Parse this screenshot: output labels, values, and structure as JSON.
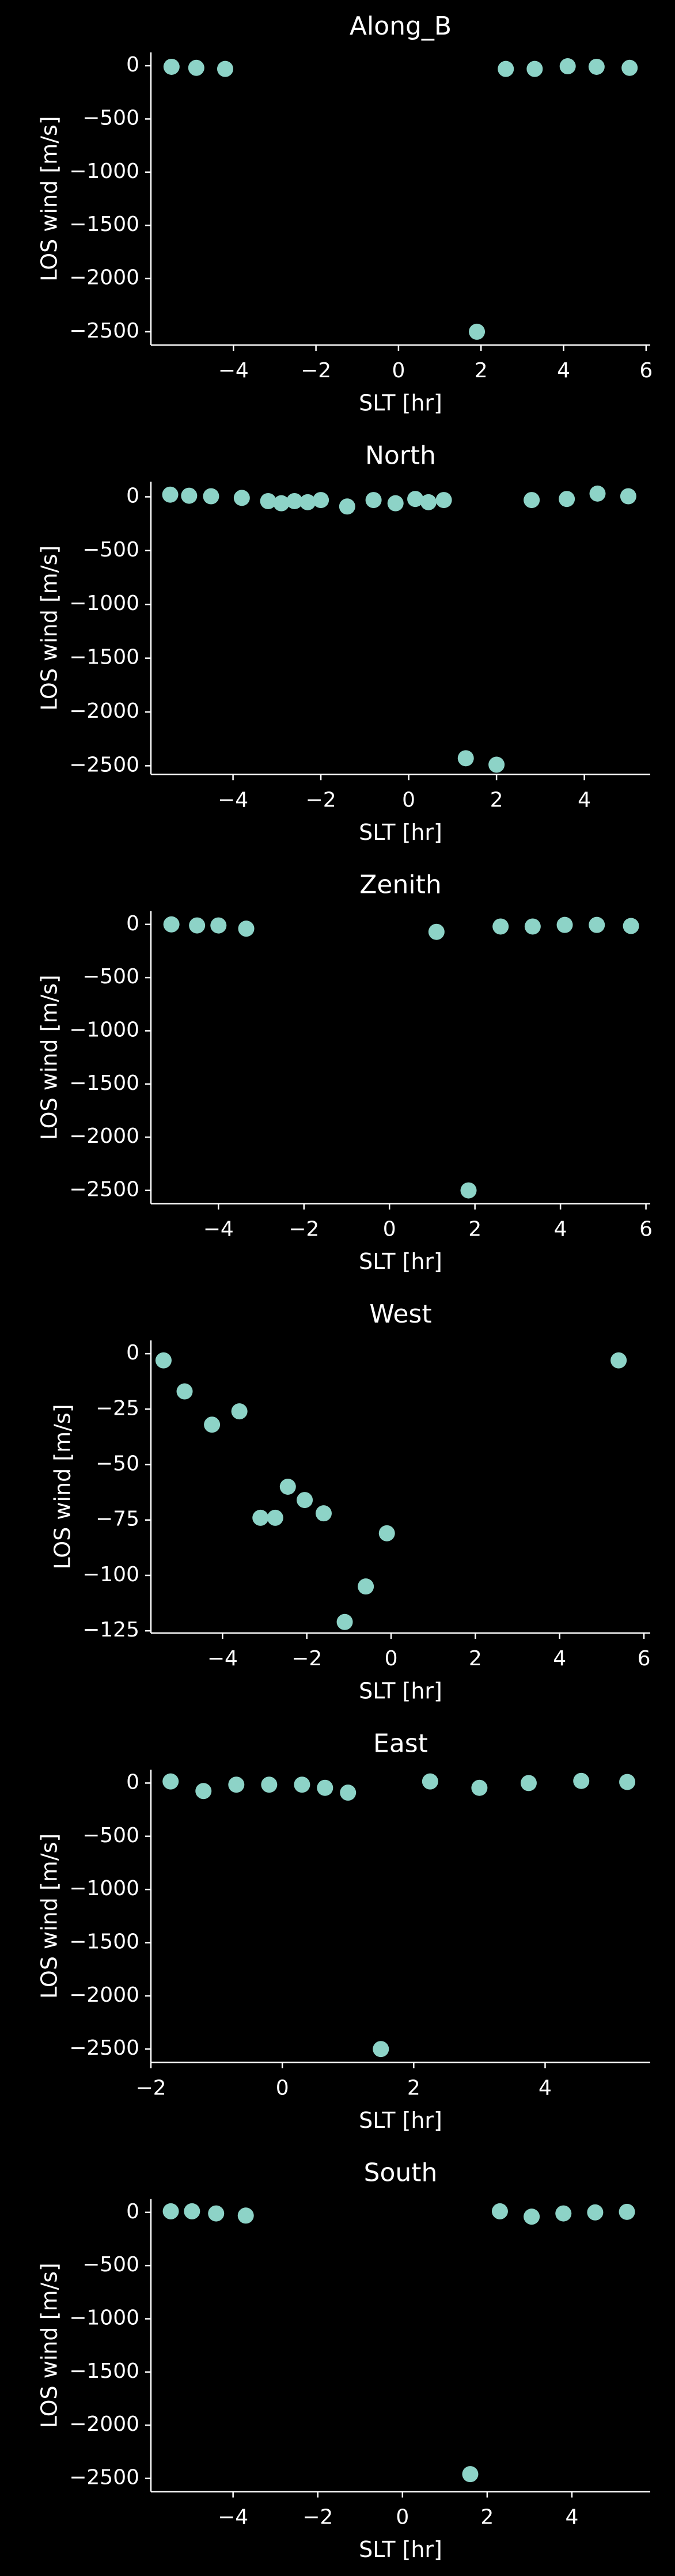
{
  "chart_data": [
    {
      "type": "scatter",
      "title": "Along_B",
      "x_label": "SLT [hr]",
      "y_label": "LOS wind [m/s]",
      "color": "#8dd3c7",
      "x": [
        -5.5,
        -4.9,
        -4.2,
        1.9,
        2.6,
        3.3,
        4.1,
        4.8,
        5.6
      ],
      "values": [
        -10,
        -20,
        -30,
        -2500,
        -30,
        -30,
        -5,
        -10,
        -20
      ],
      "xlim": [
        -6.0,
        6.1
      ],
      "ylim": [
        -2625,
        125
      ],
      "xticks": [
        {
          "value": -4,
          "label": "−4"
        },
        {
          "value": -2,
          "label": "−2"
        },
        0,
        2,
        4,
        6
      ],
      "yticks": [
        {
          "value": -2500,
          "label": "−2500"
        },
        {
          "value": -2000,
          "label": "−2000"
        },
        {
          "value": -1500,
          "label": "−1500"
        },
        {
          "value": -1000,
          "label": "−1000"
        },
        {
          "value": -500,
          "label": "−500"
        },
        0
      ]
    },
    {
      "type": "scatter",
      "title": "North",
      "x_label": "SLT [hr]",
      "y_label": "LOS wind [m/s]",
      "color": "#8dd3c7",
      "x": [
        -5.43,
        -5.0,
        -4.5,
        -3.8,
        -3.2,
        -2.9,
        -2.6,
        -2.3,
        -2.0,
        -1.4,
        -0.8,
        -0.3,
        0.15,
        0.45,
        0.8,
        1.3,
        2.0,
        2.8,
        3.6,
        4.3,
        5.0
      ],
      "values": [
        20,
        10,
        5,
        -10,
        -40,
        -60,
        -40,
        -50,
        -30,
        -90,
        -30,
        -60,
        -20,
        -50,
        -30,
        -2430,
        -2490,
        -30,
        -20,
        30,
        5
      ],
      "xlim": [
        -5.87,
        5.5
      ],
      "ylim": [
        -2580,
        140
      ],
      "xticks": [
        {
          "value": -4,
          "label": "−4"
        },
        {
          "value": -2,
          "label": "−2"
        },
        0,
        2,
        4
      ],
      "yticks": [
        {
          "value": -2500,
          "label": "−2500"
        },
        {
          "value": -2000,
          "label": "−2000"
        },
        {
          "value": -1500,
          "label": "−1500"
        },
        {
          "value": -1000,
          "label": "−1000"
        },
        {
          "value": -500,
          "label": "−500"
        },
        0
      ]
    },
    {
      "type": "scatter",
      "title": "Zenith",
      "x_label": "SLT [hr]",
      "y_label": "LOS wind [m/s]",
      "color": "#8dd3c7",
      "x": [
        -5.1,
        -4.5,
        -4.0,
        -3.35,
        1.1,
        1.85,
        2.6,
        3.35,
        4.1,
        4.85,
        5.65
      ],
      "values": [
        0,
        -10,
        -10,
        -40,
        -70,
        -2500,
        -20,
        -20,
        -5,
        -5,
        -15
      ],
      "xlim": [
        -5.58,
        6.1
      ],
      "ylim": [
        -2625,
        125
      ],
      "xticks": [
        {
          "value": -4,
          "label": "−4"
        },
        {
          "value": -2,
          "label": "−2"
        },
        0,
        2,
        4,
        6
      ],
      "yticks": [
        {
          "value": -2500,
          "label": "−2500"
        },
        {
          "value": -2000,
          "label": "−2000"
        },
        {
          "value": -1500,
          "label": "−1500"
        },
        {
          "value": -1000,
          "label": "−1000"
        },
        {
          "value": -500,
          "label": "−500"
        },
        0
      ]
    },
    {
      "type": "scatter",
      "title": "West",
      "x_label": "SLT [hr]",
      "y_label": "LOS wind [m/s]",
      "color": "#8dd3c7",
      "x": [
        -5.4,
        -4.9,
        -4.25,
        -3.6,
        -3.1,
        -2.75,
        -2.45,
        -2.05,
        -1.6,
        -1.1,
        -0.6,
        -0.1,
        5.4
      ],
      "values": [
        -3,
        -17,
        -32,
        -26,
        -74,
        -74,
        -60,
        -66,
        -72,
        -121,
        -105,
        -81,
        -3
      ],
      "xlim": [
        -5.7,
        6.15
      ],
      "ylim": [
        -126,
        6
      ],
      "xticks": [
        {
          "value": -4,
          "label": "−4"
        },
        {
          "value": -2,
          "label": "−2"
        },
        0,
        2,
        4,
        6
      ],
      "yticks": [
        {
          "value": -125,
          "label": "−125"
        },
        {
          "value": -100,
          "label": "−100"
        },
        {
          "value": -75,
          "label": "−75"
        },
        {
          "value": -50,
          "label": "−50"
        },
        {
          "value": -25,
          "label": "−25"
        },
        0
      ]
    },
    {
      "type": "scatter",
      "title": "East",
      "x_label": "SLT [hr]",
      "y_label": "LOS wind [m/s]",
      "color": "#8dd3c7",
      "x": [
        -1.7,
        -1.2,
        -0.7,
        -0.2,
        0.3,
        0.65,
        1.0,
        1.5,
        2.25,
        3.0,
        3.75,
        4.55,
        5.25
      ],
      "values": [
        15,
        -75,
        -15,
        -15,
        -15,
        -45,
        -90,
        -2500,
        15,
        -45,
        0,
        20,
        10
      ],
      "xlim": [
        -2.0,
        5.6
      ],
      "ylim": [
        -2625,
        125
      ],
      "xticks": [
        {
          "value": -2,
          "label": "−2"
        },
        0,
        2,
        4
      ],
      "yticks": [
        {
          "value": -2500,
          "label": "−2500"
        },
        {
          "value": -2000,
          "label": "−2000"
        },
        {
          "value": -1500,
          "label": "−1500"
        },
        {
          "value": -1000,
          "label": "−1000"
        },
        {
          "value": -500,
          "label": "−500"
        },
        0
      ]
    },
    {
      "type": "scatter",
      "title": "South",
      "x_label": "SLT [hr]",
      "y_label": "LOS wind [m/s]",
      "color": "#8dd3c7",
      "x": [
        -5.47,
        -4.97,
        -4.4,
        -3.7,
        1.6,
        2.3,
        3.05,
        3.8,
        4.55,
        5.3
      ],
      "values": [
        10,
        10,
        -10,
        -30,
        -2460,
        10,
        -40,
        -10,
        0,
        5
      ],
      "xlim": [
        -5.94,
        5.85
      ],
      "ylim": [
        -2625,
        125
      ],
      "xticks": [
        {
          "value": -4,
          "label": "−4"
        },
        {
          "value": -2,
          "label": "−2"
        },
        0,
        2,
        4
      ],
      "yticks": [
        {
          "value": -2500,
          "label": "−2500"
        },
        {
          "value": -2000,
          "label": "−2000"
        },
        {
          "value": -1500,
          "label": "−1500"
        },
        {
          "value": -1000,
          "label": "−1000"
        },
        {
          "value": -500,
          "label": "−500"
        },
        0
      ]
    }
  ]
}
